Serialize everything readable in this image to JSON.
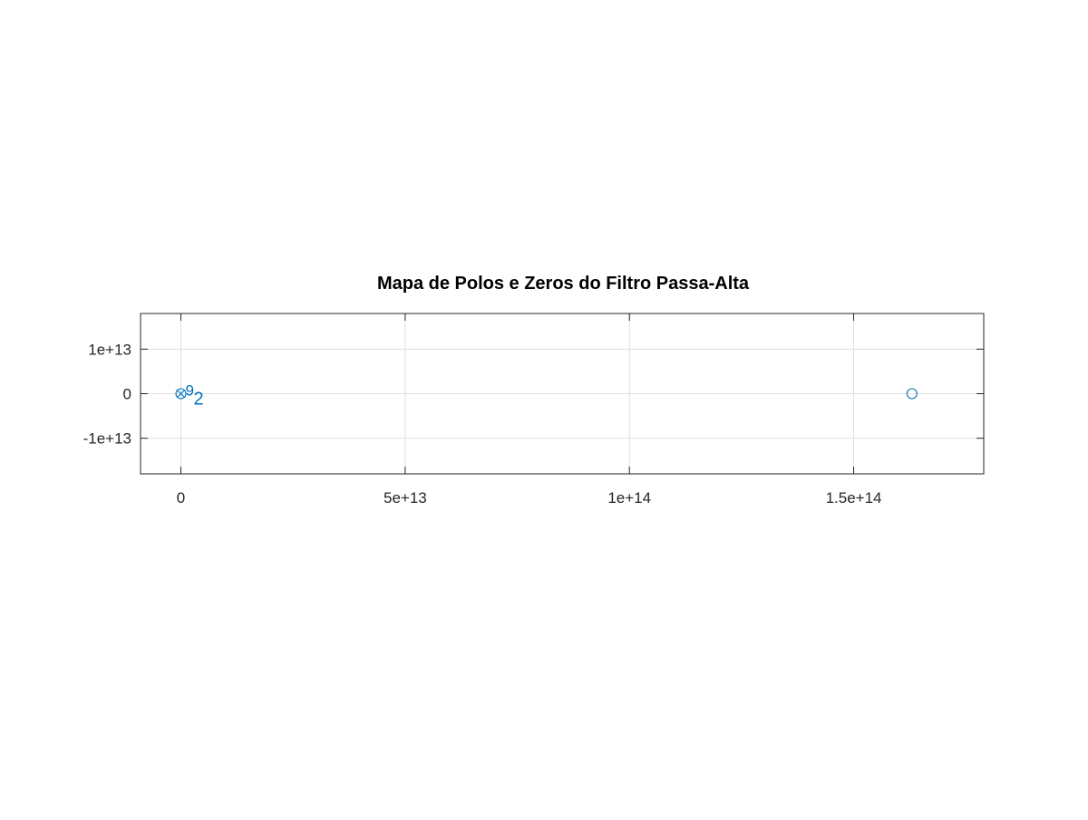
{
  "chart_data": {
    "type": "scatter",
    "title": "Mapa de Polos e Zeros do Filtro Passa-Alta",
    "xlabel": "",
    "ylabel": "",
    "xlim": [
      -9000000000000.0,
      179000000000000.0
    ],
    "ylim": [
      -18000000000000.0,
      18000000000000.0
    ],
    "grid": true,
    "x_ticks": [
      {
        "value": 0,
        "label": "0"
      },
      {
        "value": 50000000000000.0,
        "label": "5e+13"
      },
      {
        "value": 100000000000000.0,
        "label": "1e+14"
      },
      {
        "value": 150000000000000.0,
        "label": "1.5e+14"
      }
    ],
    "y_ticks": [
      {
        "value": 10000000000000.0,
        "label": "1e+13"
      },
      {
        "value": 0,
        "label": "0"
      },
      {
        "value": -10000000000000.0,
        "label": "-1e+13"
      }
    ],
    "colors": {
      "marker": "#0072bd",
      "axis": "#262626",
      "grid": "#dfdfdf"
    },
    "series": [
      {
        "marker": "o",
        "points": [
          {
            "x": 0,
            "y": 0
          },
          {
            "x": 163000000000000.0,
            "y": 0
          }
        ]
      },
      {
        "marker": "x",
        "points": [
          {
            "x": 0,
            "y": 0
          }
        ]
      }
    ],
    "annotations": [
      {
        "text": "9",
        "x": 0,
        "y": 0,
        "placement": "upper-right"
      },
      {
        "text": "2",
        "x": 0,
        "y": 0,
        "placement": "lower-right"
      }
    ]
  }
}
